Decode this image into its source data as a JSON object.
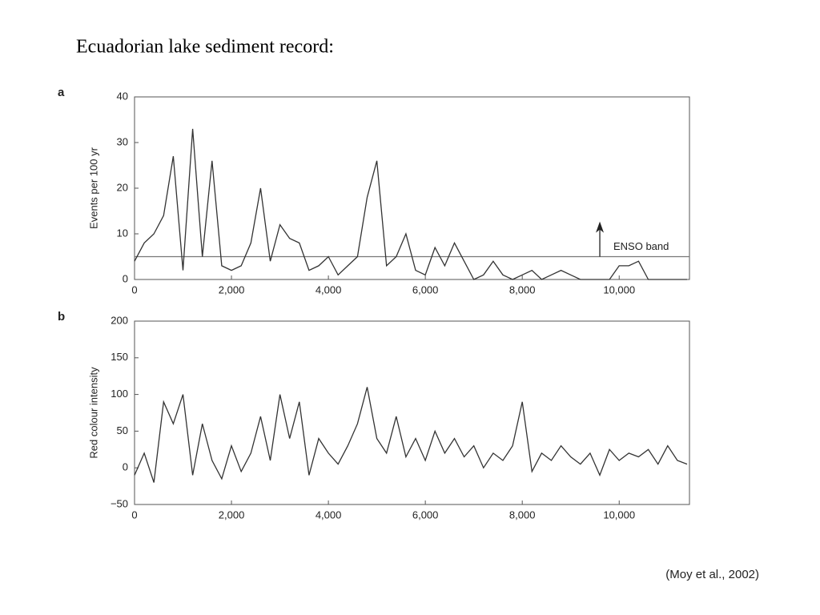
{
  "title": "Ecuadorian lake sediment record:",
  "citation": "(Moy et al., 2002)",
  "chart_data": [
    {
      "type": "line",
      "panel_label": "a",
      "y_label": "Events per 100 yr",
      "x": [
        0,
        200,
        400,
        600,
        800,
        1000,
        1200,
        1400,
        1600,
        1800,
        2000,
        2200,
        2400,
        2600,
        2800,
        3000,
        3200,
        3400,
        3600,
        3800,
        4000,
        4200,
        4400,
        4600,
        4800,
        5000,
        5200,
        5400,
        5600,
        5800,
        6000,
        6200,
        6400,
        6600,
        6800,
        7000,
        7200,
        7400,
        7600,
        7800,
        8000,
        8200,
        8400,
        8600,
        8800,
        9000,
        9200,
        9400,
        9600,
        9800,
        10000,
        10200,
        10400,
        10600,
        10800,
        11000,
        11200,
        11400
      ],
      "values": [
        4,
        8,
        10,
        14,
        27,
        2,
        33,
        5,
        26,
        3,
        2,
        3,
        8,
        20,
        4,
        12,
        9,
        8,
        2,
        3,
        5,
        1,
        3,
        5,
        18,
        26,
        3,
        5,
        10,
        2,
        1,
        7,
        3,
        8,
        4,
        0,
        1,
        4,
        1,
        0,
        1,
        2,
        0,
        1,
        2,
        1,
        0,
        0,
        0,
        0,
        3,
        3,
        4,
        0,
        0,
        0,
        0,
        0
      ],
      "color": "#333333",
      "reference_line": {
        "label": "ENSO band",
        "value": 5
      },
      "arrow": {
        "x": 9600,
        "y": [
          5,
          12
        ]
      },
      "xlim": [
        0,
        11450
      ],
      "ylim": [
        0,
        40
      ],
      "xticks": [
        0,
        {
          "value": 2000,
          "label": "2,000"
        },
        {
          "value": 4000,
          "label": "4,000"
        },
        {
          "value": 6000,
          "label": "6,000"
        },
        {
          "value": 8000,
          "label": "8,000"
        },
        {
          "value": 10000,
          "label": "10,000"
        }
      ],
      "yticks": [
        0,
        10,
        20,
        30,
        40
      ]
    },
    {
      "type": "line",
      "panel_label": "b",
      "y_label": "Red colour intensity",
      "x": [
        0,
        200,
        400,
        600,
        800,
        1000,
        1200,
        1400,
        1600,
        1800,
        2000,
        2200,
        2400,
        2600,
        2800,
        3000,
        3200,
        3400,
        3600,
        3800,
        4000,
        4200,
        4400,
        4600,
        4800,
        5000,
        5200,
        5400,
        5600,
        5800,
        6000,
        6200,
        6400,
        6600,
        6800,
        7000,
        7200,
        7400,
        7600,
        7800,
        8000,
        8200,
        8400,
        8600,
        8800,
        9000,
        9200,
        9400,
        9600,
        9800,
        10000,
        10200,
        10400,
        10600,
        10800,
        11000,
        11200,
        11400
      ],
      "values": [
        -10,
        20,
        -20,
        90,
        60,
        100,
        -10,
        60,
        10,
        -15,
        30,
        -5,
        20,
        70,
        10,
        100,
        40,
        90,
        -10,
        40,
        20,
        5,
        30,
        60,
        110,
        40,
        20,
        70,
        15,
        40,
        10,
        50,
        20,
        40,
        15,
        30,
        0,
        20,
        10,
        30,
        90,
        -5,
        20,
        10,
        30,
        15,
        5,
        20,
        -10,
        25,
        10,
        20,
        15,
        25,
        5,
        30,
        10,
        5
      ],
      "color": "#333333",
      "xlim": [
        0,
        11450
      ],
      "ylim": [
        -50,
        200
      ],
      "xticks": [
        0,
        {
          "value": 2000,
          "label": "2,000"
        },
        {
          "value": 4000,
          "label": "4,000"
        },
        {
          "value": 6000,
          "label": "6,000"
        },
        {
          "value": 8000,
          "label": "8,000"
        },
        {
          "value": 10000,
          "label": "10,000"
        }
      ],
      "yticks": [
        {
          "value": -50,
          "label": "−50"
        },
        0,
        50,
        100,
        150,
        200
      ]
    }
  ]
}
